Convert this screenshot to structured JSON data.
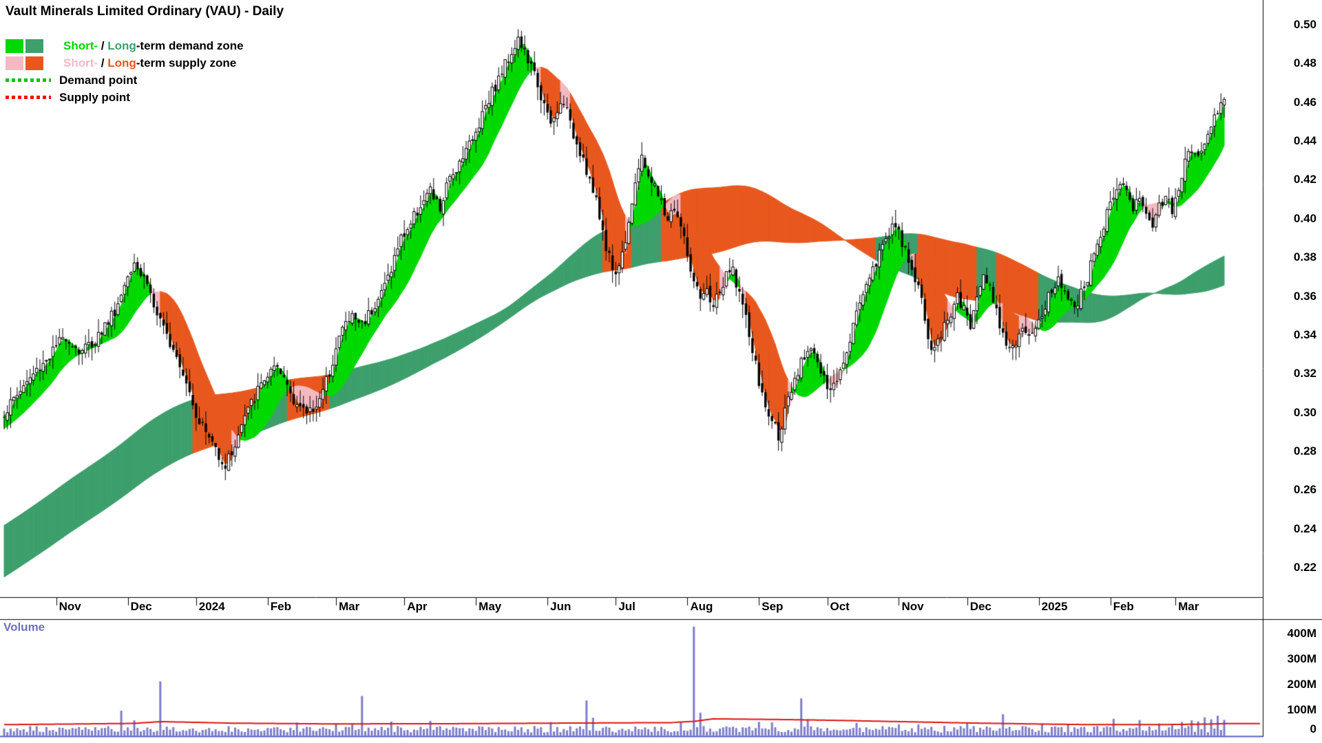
{
  "title": "Vault Minerals Limited Ordinary (VAU) - Daily",
  "legend": {
    "demand_zone": {
      "short": "Short-",
      "sep": " / ",
      "long": "Long",
      "rest": "-term demand zone"
    },
    "supply_zone": {
      "short": "Short-",
      "sep": " / ",
      "long": "Long",
      "rest": "-term supply zone"
    },
    "demand_point": "Demand point",
    "supply_point": "Supply point"
  },
  "volume_pane": {
    "label": "Volume"
  },
  "colors": {
    "demand_short": "#00D900",
    "demand_long": "#3D9F6C",
    "supply_short": "#F4B9C2",
    "supply_long": "#E8581E",
    "demand_point": "#00C400",
    "supply_point": "#EE1111",
    "candle": "#000000",
    "candle_up_fill": "#FFFFFF",
    "volume_bar": "#7D7DC9",
    "volume_avg_line": "#DE1212",
    "volume_label": "#7070C0",
    "axis_line": "#000000",
    "separator_blue": "#5A5AC8",
    "background": "#FFFFFF",
    "text": "#000000"
  },
  "chart_data": {
    "type": "candlestick",
    "title": "Vault Minerals Limited Ordinary (VAU) - Daily",
    "interval": "Daily",
    "overlays": [
      "short-term demand/supply zone band",
      "long-term demand/supply zone band"
    ],
    "lower_pane": "volume with average-volume line",
    "ylim": [
      0.21,
      0.505
    ],
    "volume_ylim_millions": [
      0,
      430
    ],
    "n_days": 376,
    "y_ticks": [
      "0.50",
      "0.48",
      "0.46",
      "0.44",
      "0.42",
      "0.40",
      "0.38",
      "0.36",
      "0.34",
      "0.32",
      "0.30",
      "0.28",
      "0.26",
      "0.24",
      "0.22"
    ],
    "x_ticks": [
      {
        "label": "Nov",
        "day": 16
      },
      {
        "label": "Dec",
        "day": 38
      },
      {
        "label": "2024",
        "day": 59
      },
      {
        "label": "Feb",
        "day": 81
      },
      {
        "label": "Mar",
        "day": 102
      },
      {
        "label": "Apr",
        "day": 123
      },
      {
        "label": "May",
        "day": 145
      },
      {
        "label": "Jun",
        "day": 167
      },
      {
        "label": "Jul",
        "day": 188
      },
      {
        "label": "Aug",
        "day": 210
      },
      {
        "label": "Sep",
        "day": 232
      },
      {
        "label": "Oct",
        "day": 253
      },
      {
        "label": "Nov",
        "day": 275
      },
      {
        "label": "Dec",
        "day": 296
      },
      {
        "label": "2025",
        "day": 318
      },
      {
        "label": "Feb",
        "day": 340
      },
      {
        "label": "Mar",
        "day": 360
      }
    ],
    "volume_ticks": [
      {
        "label": "400M",
        "value": 400
      },
      {
        "label": "300M",
        "value": 300
      },
      {
        "label": "200M",
        "value": 200
      },
      {
        "label": "100M",
        "value": 100
      },
      {
        "label": "0",
        "value": 0
      }
    ],
    "price_anchors": [
      [
        0,
        0.3
      ],
      [
        5,
        0.312
      ],
      [
        10,
        0.322
      ],
      [
        15,
        0.332
      ],
      [
        19,
        0.34
      ],
      [
        23,
        0.332
      ],
      [
        27,
        0.336
      ],
      [
        31,
        0.345
      ],
      [
        35,
        0.356
      ],
      [
        38,
        0.372
      ],
      [
        40,
        0.38
      ],
      [
        42,
        0.372
      ],
      [
        44,
        0.368
      ],
      [
        46,
        0.355
      ],
      [
        49,
        0.342
      ],
      [
        52,
        0.335
      ],
      [
        55,
        0.322
      ],
      [
        57,
        0.312
      ],
      [
        59,
        0.3
      ],
      [
        62,
        0.29
      ],
      [
        65,
        0.282
      ],
      [
        68,
        0.273
      ],
      [
        71,
        0.284
      ],
      [
        74,
        0.298
      ],
      [
        77,
        0.308
      ],
      [
        80,
        0.318
      ],
      [
        83,
        0.322
      ],
      [
        86,
        0.318
      ],
      [
        89,
        0.308
      ],
      [
        92,
        0.3
      ],
      [
        95,
        0.303
      ],
      [
        98,
        0.31
      ],
      [
        101,
        0.328
      ],
      [
        104,
        0.344
      ],
      [
        107,
        0.35
      ],
      [
        110,
        0.346
      ],
      [
        113,
        0.354
      ],
      [
        116,
        0.362
      ],
      [
        119,
        0.375
      ],
      [
        122,
        0.39
      ],
      [
        125,
        0.398
      ],
      [
        128,
        0.408
      ],
      [
        131,
        0.414
      ],
      [
        134,
        0.405
      ],
      [
        136,
        0.416
      ],
      [
        138,
        0.424
      ],
      [
        140,
        0.43
      ],
      [
        142,
        0.438
      ],
      [
        144,
        0.44
      ],
      [
        146,
        0.45
      ],
      [
        148,
        0.46
      ],
      [
        150,
        0.466
      ],
      [
        152,
        0.472
      ],
      [
        154,
        0.48
      ],
      [
        156,
        0.487
      ],
      [
        158,
        0.493
      ],
      [
        160,
        0.486
      ],
      [
        162,
        0.478
      ],
      [
        164,
        0.47
      ],
      [
        166,
        0.458
      ],
      [
        168,
        0.448
      ],
      [
        170,
        0.455
      ],
      [
        172,
        0.462
      ],
      [
        174,
        0.448
      ],
      [
        176,
        0.44
      ],
      [
        178,
        0.432
      ],
      [
        180,
        0.42
      ],
      [
        182,
        0.408
      ],
      [
        184,
        0.394
      ],
      [
        186,
        0.38
      ],
      [
        188,
        0.372
      ],
      [
        190,
        0.382
      ],
      [
        192,
        0.4
      ],
      [
        194,
        0.42
      ],
      [
        196,
        0.43
      ],
      [
        198,
        0.424
      ],
      [
        200,
        0.416
      ],
      [
        202,
        0.408
      ],
      [
        204,
        0.4
      ],
      [
        206,
        0.406
      ],
      [
        208,
        0.396
      ],
      [
        210,
        0.382
      ],
      [
        212,
        0.366
      ],
      [
        214,
        0.358
      ],
      [
        216,
        0.362
      ],
      [
        218,
        0.356
      ],
      [
        220,
        0.362
      ],
      [
        222,
        0.37
      ],
      [
        224,
        0.374
      ],
      [
        226,
        0.362
      ],
      [
        228,
        0.348
      ],
      [
        230,
        0.332
      ],
      [
        232,
        0.316
      ],
      [
        234,
        0.302
      ],
      [
        236,
        0.296
      ],
      [
        238,
        0.289
      ],
      [
        240,
        0.3
      ],
      [
        242,
        0.31
      ],
      [
        244,
        0.32
      ],
      [
        246,
        0.33
      ],
      [
        248,
        0.336
      ],
      [
        250,
        0.326
      ],
      [
        252,
        0.316
      ],
      [
        254,
        0.31
      ],
      [
        256,
        0.318
      ],
      [
        259,
        0.334
      ],
      [
        262,
        0.352
      ],
      [
        265,
        0.368
      ],
      [
        268,
        0.378
      ],
      [
        271,
        0.39
      ],
      [
        273,
        0.398
      ],
      [
        275,
        0.392
      ],
      [
        277,
        0.382
      ],
      [
        279,
        0.374
      ],
      [
        281,
        0.366
      ],
      [
        283,
        0.348
      ],
      [
        285,
        0.332
      ],
      [
        287,
        0.336
      ],
      [
        289,
        0.346
      ],
      [
        291,
        0.352
      ],
      [
        293,
        0.36
      ],
      [
        295,
        0.352
      ],
      [
        297,
        0.346
      ],
      [
        299,
        0.358
      ],
      [
        301,
        0.374
      ],
      [
        303,
        0.366
      ],
      [
        305,
        0.352
      ],
      [
        307,
        0.342
      ],
      [
        309,
        0.334
      ],
      [
        311,
        0.336
      ],
      [
        313,
        0.341
      ],
      [
        315,
        0.338
      ],
      [
        318,
        0.348
      ],
      [
        321,
        0.36
      ],
      [
        324,
        0.368
      ],
      [
        327,
        0.362
      ],
      [
        330,
        0.356
      ],
      [
        333,
        0.37
      ],
      [
        336,
        0.386
      ],
      [
        339,
        0.402
      ],
      [
        341,
        0.414
      ],
      [
        343,
        0.421
      ],
      [
        345,
        0.413
      ],
      [
        347,
        0.406
      ],
      [
        349,
        0.411
      ],
      [
        351,
        0.403
      ],
      [
        353,
        0.398
      ],
      [
        355,
        0.406
      ],
      [
        357,
        0.413
      ],
      [
        359,
        0.406
      ],
      [
        361,
        0.418
      ],
      [
        363,
        0.428
      ],
      [
        365,
        0.436
      ],
      [
        367,
        0.433
      ],
      [
        369,
        0.441
      ],
      [
        371,
        0.449
      ],
      [
        373,
        0.456
      ],
      [
        375,
        0.463
      ]
    ],
    "bands": {
      "short": {
        "fast": 3,
        "slow": 16
      },
      "long": {
        "fast": 110,
        "slow": 160
      }
    },
    "prehistory": {
      "days": 160,
      "start": 0.13,
      "end": 0.3
    },
    "volume_spikes_millions": [
      [
        36,
        100
      ],
      [
        40,
        62
      ],
      [
        48,
        215
      ],
      [
        110,
        158
      ],
      [
        131,
        60
      ],
      [
        168,
        55
      ],
      [
        179,
        140
      ],
      [
        181,
        72
      ],
      [
        212,
        430
      ],
      [
        214,
        92
      ],
      [
        232,
        56
      ],
      [
        245,
        148
      ],
      [
        247,
        66
      ],
      [
        262,
        52
      ],
      [
        275,
        46
      ],
      [
        296,
        52
      ],
      [
        307,
        86
      ],
      [
        341,
        68
      ],
      [
        355,
        50
      ],
      [
        362,
        56
      ],
      [
        365,
        62
      ],
      [
        367,
        58
      ],
      [
        369,
        74
      ],
      [
        371,
        66
      ],
      [
        373,
        80
      ],
      [
        375,
        64
      ]
    ],
    "avg_volume_anchors_millions": [
      [
        0,
        45
      ],
      [
        40,
        50
      ],
      [
        48,
        57
      ],
      [
        70,
        51
      ],
      [
        100,
        48
      ],
      [
        140,
        49
      ],
      [
        170,
        51
      ],
      [
        205,
        53
      ],
      [
        212,
        58
      ],
      [
        218,
        68
      ],
      [
        240,
        65
      ],
      [
        255,
        62
      ],
      [
        275,
        57
      ],
      [
        295,
        52
      ],
      [
        315,
        48
      ],
      [
        335,
        45
      ],
      [
        355,
        45
      ],
      [
        368,
        47
      ],
      [
        375,
        49
      ]
    ]
  }
}
